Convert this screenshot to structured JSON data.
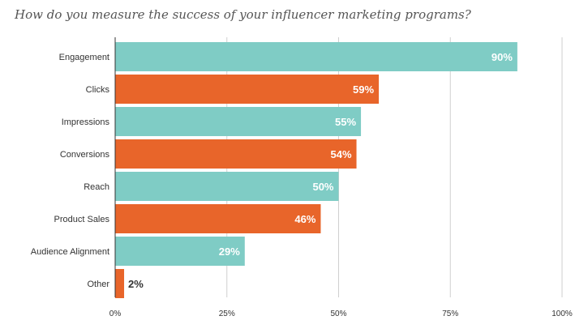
{
  "chart_data": {
    "type": "bar",
    "orientation": "horizontal",
    "title": "How do you measure the success of your influencer marketing programs?",
    "categories": [
      "Engagement",
      "Clicks",
      "Impressions",
      "Conversions",
      "Reach",
      "Product Sales",
      "Audience Alignment",
      "Other"
    ],
    "values": [
      90,
      59,
      55,
      54,
      50,
      46,
      29,
      2
    ],
    "value_labels": [
      "90%",
      "59%",
      "55%",
      "54%",
      "50%",
      "46%",
      "29%",
      "2%"
    ],
    "colors": [
      "#7fccc5",
      "#e8652a",
      "#7fccc5",
      "#e8652a",
      "#7fccc5",
      "#e8652a",
      "#7fccc5",
      "#e8652a"
    ],
    "xlim": [
      0,
      100
    ],
    "xticks": [
      "0%",
      "25%",
      "50%",
      "75%",
      "100%"
    ],
    "grid": true,
    "legend": "none"
  }
}
